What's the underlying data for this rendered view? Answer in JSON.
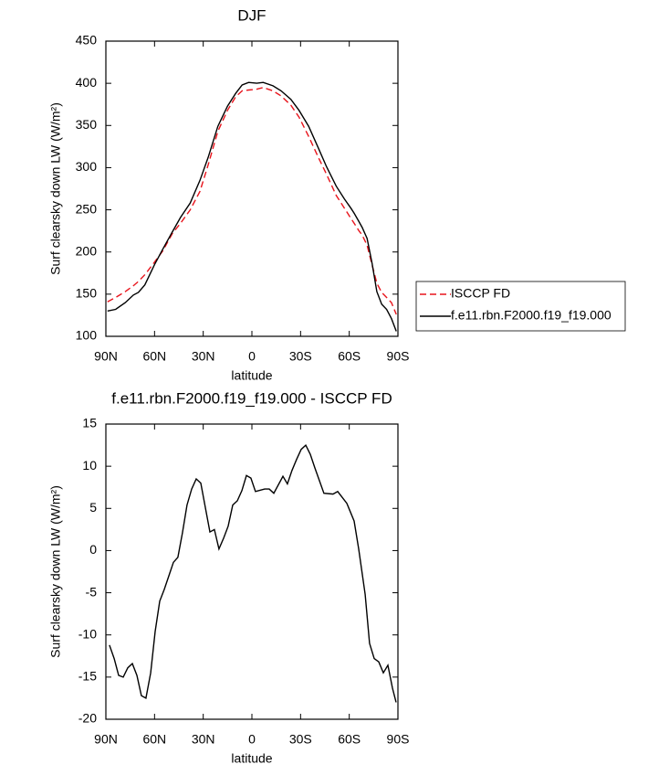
{
  "chart_data": [
    {
      "type": "line",
      "title": "DJF",
      "xlabel": "latitude",
      "ylabel": "Surf clearsky down LW (W/m²)",
      "x": [
        89,
        84,
        78,
        73,
        70,
        66,
        60,
        55,
        49,
        44,
        38,
        32,
        27,
        21,
        15,
        10,
        6,
        2,
        -3,
        -7,
        -13,
        -18,
        -24,
        -29,
        -35,
        -41,
        -46,
        -52,
        -57,
        -61,
        -63,
        -66,
        -68,
        -71,
        -74,
        -77,
        -80,
        -83,
        -86,
        -89
      ],
      "series": [
        {
          "name": "ISCCP FD",
          "color": "#e8141c",
          "dash": "dashed",
          "values": [
            141,
            146,
            153,
            160,
            165,
            173,
            188,
            201,
            222,
            234,
            250,
            272,
            303,
            343,
            368,
            384,
            391,
            392,
            393,
            395,
            391,
            385,
            374,
            360,
            337,
            312,
            292,
            267,
            252,
            240,
            234,
            225,
            220,
            208,
            185,
            163,
            152,
            146,
            140,
            126
          ]
        },
        {
          "name": "f.e11.rbn.F2000.f19_f19.000",
          "color": "#000000",
          "dash": "solid",
          "values": [
            130,
            132,
            140,
            149,
            152,
            161,
            185,
            203,
            224,
            241,
            258,
            285,
            312,
            349,
            373,
            388,
            398,
            401,
            400,
            401,
            397,
            391,
            381,
            368,
            349,
            323,
            301,
            278,
            263,
            252,
            246,
            236,
            229,
            216,
            187,
            153,
            138,
            132,
            121,
            106
          ]
        }
      ],
      "xlim": [
        90,
        -90
      ],
      "xticks": [
        {
          "value": 90,
          "label": "90N"
        },
        {
          "value": 60,
          "label": "60N"
        },
        {
          "value": 30,
          "label": "30N"
        },
        0,
        {
          "value": -30,
          "label": "30S"
        },
        {
          "value": -60,
          "label": "60S"
        },
        {
          "value": -90,
          "label": "90S"
        }
      ],
      "ylim": [
        100,
        450
      ],
      "yticks": [
        100,
        150,
        200,
        250,
        300,
        350,
        400,
        450
      ],
      "legend": "right"
    },
    {
      "type": "line",
      "title": "f.e11.rbn.F2000.f19_f19.000 - ISCCP FD",
      "xlabel": "latitude",
      "ylabel": "Surf clearsky down LW (W/m²)",
      "x": [
        87.8,
        84.9,
        82.1,
        79.3,
        76.5,
        73.7,
        70.9,
        68.1,
        65.3,
        62.4,
        59.6,
        56.8,
        54.0,
        51.2,
        48.4,
        45.6,
        42.8,
        40.0,
        37.1,
        34.3,
        31.5,
        28.7,
        25.9,
        23.1,
        20.3,
        17.4,
        14.6,
        11.8,
        9.0,
        6.2,
        3.4,
        0.6,
        -2.2,
        -7.9,
        -10.7,
        -13.5,
        -19.1,
        -21.9,
        -24.7,
        -27.5,
        -30.4,
        -33.2,
        -36.0,
        -38.8,
        -44.4,
        -50.0,
        -52.9,
        -58.5,
        -63.0,
        -65.8,
        -69.8,
        -72.5,
        -75.4,
        -78.2,
        -81.0,
        -83.8,
        -86.6,
        -88.9
      ],
      "series": [
        {
          "color": "#000000",
          "values": [
            -11.2,
            -12.8,
            -14.8,
            -15.0,
            -13.9,
            -13.4,
            -14.8,
            -17.2,
            -17.5,
            -14.5,
            -9.6,
            -6.0,
            -4.6,
            -3.0,
            -1.4,
            -0.8,
            2.1,
            5.4,
            7.3,
            8.5,
            8.0,
            5.1,
            2.2,
            2.5,
            0.2,
            1.5,
            2.9,
            5.4,
            5.9,
            7.1,
            8.9,
            8.6,
            7.0,
            7.3,
            7.3,
            6.8,
            8.8,
            7.9,
            9.5,
            10.8,
            12.0,
            12.5,
            11.4,
            9.8,
            6.8,
            6.7,
            7.0,
            5.6,
            3.5,
            0.2,
            -5.2,
            -11.0,
            -12.8,
            -13.2,
            -14.5,
            -13.6,
            -16.3,
            -18.0
          ]
        }
      ],
      "xlim": [
        90,
        -90
      ],
      "xticks": [
        {
          "value": 90,
          "label": "90N"
        },
        {
          "value": 60,
          "label": "60N"
        },
        {
          "value": 30,
          "label": "30N"
        },
        0,
        {
          "value": -30,
          "label": "30S"
        },
        {
          "value": -60,
          "label": "60S"
        },
        {
          "value": -90,
          "label": "90S"
        }
      ],
      "ylim": [
        -20,
        15
      ],
      "yticks": [
        -20,
        -15,
        -10,
        -5,
        0,
        5,
        10,
        15
      ]
    }
  ]
}
